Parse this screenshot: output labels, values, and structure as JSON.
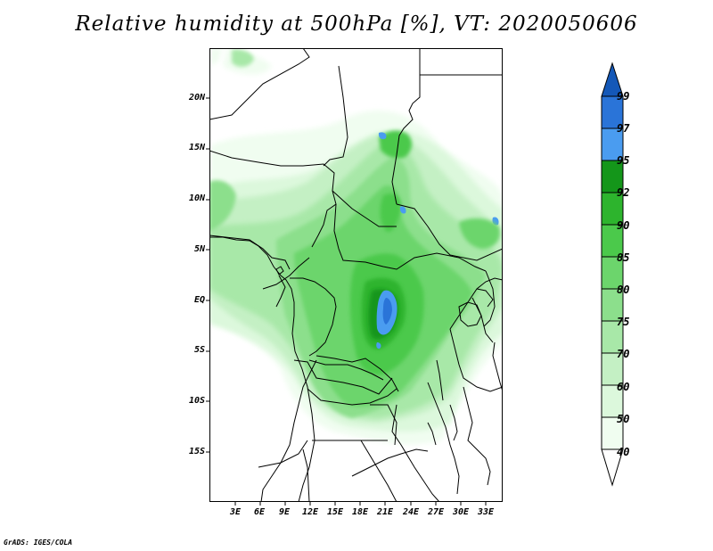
{
  "title": "Relative humidity at 500hPa [%], VT: 2020050606",
  "credit": "GrADS: IGES/COLA",
  "map": {
    "lat_labels": [
      "20N",
      "15N",
      "10N",
      "5N",
      "EQ",
      "5S",
      "10S",
      "15S"
    ],
    "lon_labels": [
      "3E",
      "6E",
      "9E",
      "12E",
      "15E",
      "18E",
      "21E",
      "24E",
      "27E",
      "30E",
      "33E"
    ]
  },
  "colorbar": {
    "levels": [
      "99",
      "97",
      "95",
      "92",
      "90",
      "85",
      "80",
      "75",
      "70",
      "60",
      "50",
      "40"
    ],
    "colors": {
      "c40_50": "#f0fdf0",
      "c50_60": "#dcf8dc",
      "c60_70": "#c4f0c4",
      "c70_75": "#a8e8a8",
      "c75_80": "#8cdf8c",
      "c80_85": "#6cd56c",
      "c85_90": "#4bc94b",
      "c90_92": "#2db42d",
      "c92_95": "#14961a",
      "c95_97": "#4a9cf0",
      "c97_99": "#2a74d8",
      "c99": "#1458b8"
    }
  }
}
